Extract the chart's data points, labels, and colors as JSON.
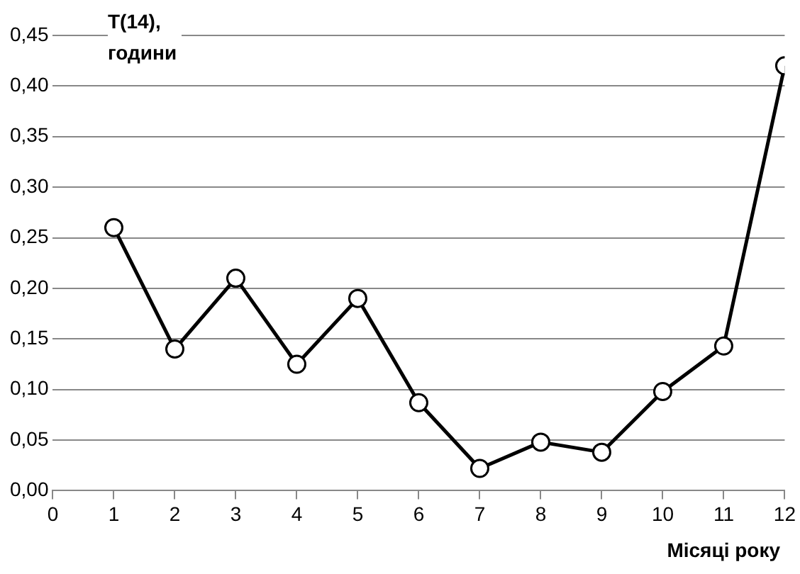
{
  "chart_data": {
    "type": "line",
    "xlabel": "Місяці року",
    "ylabel": "T(14),\nгодини",
    "x": [
      1,
      2,
      3,
      4,
      5,
      6,
      7,
      8,
      9,
      10,
      11,
      12
    ],
    "values": [
      0.26,
      0.14,
      0.21,
      0.125,
      0.19,
      0.087,
      0.022,
      0.048,
      0.038,
      0.098,
      0.143,
      0.42
    ],
    "color": "#000000",
    "marker": "circle",
    "line_style": "solid",
    "grid": "y",
    "legend": false,
    "xlim": [
      0,
      12
    ],
    "xticks": [
      0,
      1,
      2,
      3,
      4,
      5,
      6,
      7,
      8,
      9,
      10,
      11,
      12
    ],
    "ylim": [
      0,
      0.45
    ],
    "yticks": [
      {
        "value": 0,
        "label": "0,00"
      },
      {
        "value": 0.05,
        "label": "0,05"
      },
      {
        "value": 0.1,
        "label": "0,10"
      },
      {
        "value": 0.15,
        "label": "0,15"
      },
      {
        "value": 0.2,
        "label": "0,20"
      },
      {
        "value": 0.25,
        "label": "0,25"
      },
      {
        "value": 0.3,
        "label": "0,30"
      },
      {
        "value": 0.35,
        "label": "0,35"
      },
      {
        "value": 0.4,
        "label": "0,40"
      },
      {
        "value": 0.45,
        "label": "0,45"
      }
    ]
  }
}
